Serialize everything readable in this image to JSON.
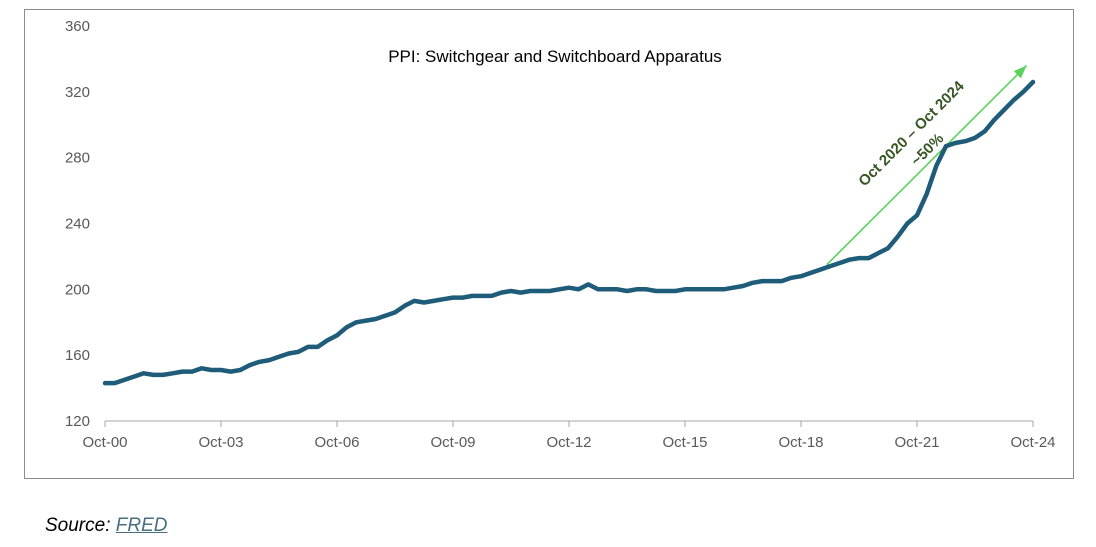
{
  "source": {
    "prefix": "Source: ",
    "link_label": "FRED"
  },
  "colors": {
    "series": "#1f5c7a",
    "arrow": "#5ad15a",
    "annotation": "#375623",
    "axis": "#595959"
  },
  "chart_data": {
    "type": "line",
    "title": "PPI: Switchgear and Switchboard Apparatus",
    "xlabel": "",
    "ylabel": "",
    "ylim": [
      120,
      360
    ],
    "yticks": [
      "120",
      "160",
      "200",
      "240",
      "280",
      "320",
      "360"
    ],
    "xticks": [
      "Oct-00",
      "Oct-03",
      "Oct-06",
      "Oct-09",
      "Oct-12",
      "Oct-15",
      "Oct-18",
      "Oct-21",
      "Oct-24"
    ],
    "grid": false,
    "annotation": {
      "line1": "Oct 2020 – Oct 2024",
      "line2": "~50%",
      "arrow_from": [
        "2019-06",
        215
      ],
      "arrow_to": [
        "2024-08",
        336
      ]
    },
    "series": [
      {
        "x": [
          "2000-10",
          "2001-01",
          "2001-04",
          "2001-07",
          "2001-10",
          "2002-01",
          "2002-04",
          "2002-07",
          "2002-10",
          "2003-01",
          "2003-04",
          "2003-07",
          "2003-10",
          "2004-01",
          "2004-04",
          "2004-07",
          "2004-10",
          "2005-01",
          "2005-04",
          "2005-07",
          "2005-10",
          "2006-01",
          "2006-04",
          "2006-07",
          "2006-10",
          "2007-01",
          "2007-04",
          "2007-07",
          "2007-10",
          "2008-01",
          "2008-04",
          "2008-07",
          "2008-10",
          "2009-01",
          "2009-04",
          "2009-07",
          "2009-10",
          "2010-01",
          "2010-04",
          "2010-07",
          "2010-10",
          "2011-01",
          "2011-04",
          "2011-07",
          "2011-10",
          "2012-01",
          "2012-04",
          "2012-07",
          "2012-10",
          "2013-01",
          "2013-04",
          "2013-07",
          "2013-10",
          "2014-01",
          "2014-04",
          "2014-07",
          "2014-10",
          "2015-01",
          "2015-04",
          "2015-07",
          "2015-10",
          "2016-01",
          "2016-04",
          "2016-07",
          "2016-10",
          "2017-01",
          "2017-04",
          "2017-07",
          "2017-10",
          "2018-01",
          "2018-04",
          "2018-07",
          "2018-10",
          "2019-01",
          "2019-04",
          "2019-07",
          "2019-10",
          "2020-01",
          "2020-04",
          "2020-07",
          "2020-10",
          "2021-01",
          "2021-04",
          "2021-07",
          "2021-10",
          "2022-01",
          "2022-04",
          "2022-07",
          "2022-10",
          "2023-01",
          "2023-04",
          "2023-07",
          "2023-10",
          "2024-01",
          "2024-04",
          "2024-07",
          "2024-10"
        ],
        "values": [
          143,
          143,
          145,
          147,
          149,
          148,
          148,
          149,
          150,
          150,
          152,
          151,
          151,
          150,
          151,
          154,
          156,
          157,
          159,
          161,
          162,
          165,
          165,
          169,
          172,
          177,
          180,
          181,
          182,
          184,
          186,
          190,
          193,
          192,
          193,
          194,
          195,
          195,
          196,
          196,
          196,
          198,
          199,
          198,
          199,
          199,
          199,
          200,
          201,
          200,
          203,
          200,
          200,
          200,
          199,
          200,
          200,
          199,
          199,
          199,
          200,
          200,
          200,
          200,
          200,
          201,
          202,
          204,
          205,
          205,
          205,
          207,
          208,
          210,
          212,
          214,
          216,
          218,
          219,
          219,
          222,
          225,
          232,
          240,
          245,
          258,
          275,
          287,
          289,
          290,
          292,
          296,
          303,
          309,
          315,
          320,
          326
        ]
      }
    ]
  }
}
